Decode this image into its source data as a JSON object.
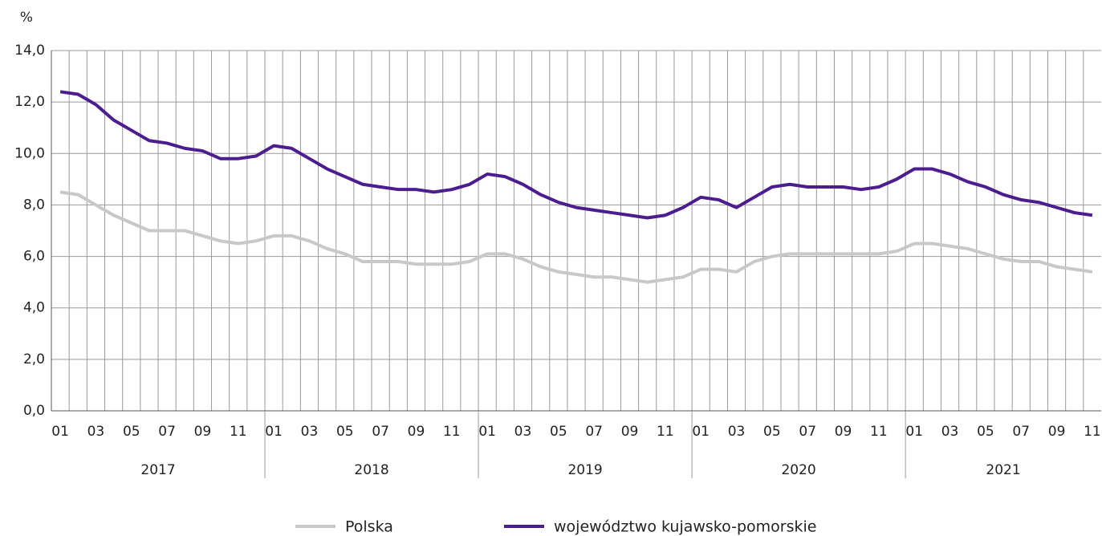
{
  "chart_data": {
    "type": "line",
    "y_label": "%",
    "categories": [
      "01",
      null,
      "03",
      null,
      "05",
      null,
      "07",
      null,
      "09",
      null,
      "11",
      null,
      "01",
      null,
      "03",
      null,
      "05",
      null,
      "07",
      null,
      "09",
      null,
      "11",
      null,
      "01",
      null,
      "03",
      null,
      "05",
      null,
      "07",
      null,
      "09",
      null,
      "11",
      null,
      "01",
      null,
      "03",
      null,
      "05",
      null,
      "07",
      null,
      "09",
      null,
      "11",
      null,
      "01",
      null,
      "03",
      null,
      "05",
      null,
      "07",
      null,
      "09",
      null,
      "11"
    ],
    "groups": [
      "2017",
      "2018",
      "2019",
      "2020",
      "2021"
    ],
    "series": [
      {
        "name": "Polska",
        "color": "#c8c8c8",
        "values": [
          8.5,
          8.4,
          8.0,
          7.6,
          7.3,
          7.0,
          7.0,
          7.0,
          6.8,
          6.6,
          6.5,
          6.6,
          6.8,
          6.8,
          6.6,
          6.3,
          6.1,
          5.8,
          5.8,
          5.8,
          5.7,
          5.7,
          5.7,
          5.8,
          6.1,
          6.1,
          5.9,
          5.6,
          5.4,
          5.3,
          5.2,
          5.2,
          5.1,
          5.0,
          5.1,
          5.2,
          5.5,
          5.5,
          5.4,
          5.8,
          6.0,
          6.1,
          6.1,
          6.1,
          6.1,
          6.1,
          6.1,
          6.2,
          6.5,
          6.5,
          6.4,
          6.3,
          6.1,
          5.9,
          5.8,
          5.8,
          5.6,
          5.5,
          5.4
        ]
      },
      {
        "name": "województwo kujawsko-pomorskie",
        "color": "#4b1d8f",
        "values": [
          12.4,
          12.3,
          11.9,
          11.3,
          10.9,
          10.5,
          10.4,
          10.2,
          10.1,
          9.8,
          9.8,
          9.9,
          10.3,
          10.2,
          9.8,
          9.4,
          9.1,
          8.8,
          8.7,
          8.6,
          8.6,
          8.5,
          8.6,
          8.8,
          9.2,
          9.1,
          8.8,
          8.4,
          8.1,
          7.9,
          7.8,
          7.7,
          7.6,
          7.5,
          7.6,
          7.9,
          8.3,
          8.2,
          7.9,
          8.3,
          8.7,
          8.8,
          8.7,
          8.7,
          8.7,
          8.6,
          8.7,
          9.0,
          9.4,
          9.4,
          9.2,
          8.9,
          8.7,
          8.4,
          8.2,
          8.1,
          7.9,
          7.7,
          7.6
        ]
      }
    ],
    "ylim": [
      0,
      14
    ],
    "yticks": [
      {
        "value": 0,
        "label": "0,0"
      },
      {
        "value": 2,
        "label": "2,0"
      },
      {
        "value": 4,
        "label": "4,0"
      },
      {
        "value": 6,
        "label": "6,0"
      },
      {
        "value": 8,
        "label": "8,0"
      },
      {
        "value": 10,
        "label": "10,0"
      },
      {
        "value": 12,
        "label": "12,0"
      },
      {
        "value": 14,
        "label": "14,0"
      }
    ],
    "grid": true,
    "legend": "bottom"
  }
}
